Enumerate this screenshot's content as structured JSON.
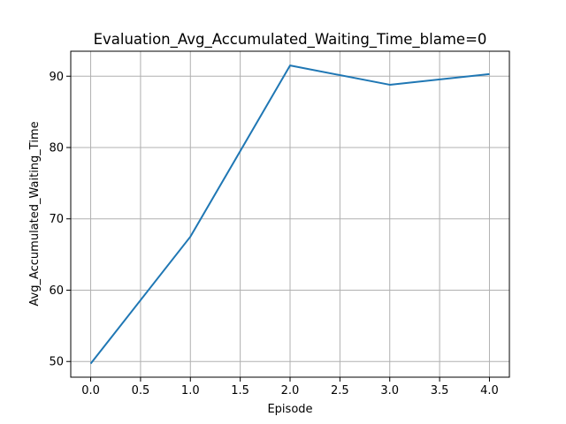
{
  "chart_data": {
    "type": "line",
    "title": "Evaluation_Avg_Accumulated_Waiting_Time_blame=0",
    "xlabel": "Episode",
    "ylabel": "Avg_Accumulated_Waiting_Time",
    "x": [
      0,
      1,
      2,
      3,
      4
    ],
    "series": [
      {
        "values": [
          49.7,
          67.5,
          91.5,
          88.8,
          90.3
        ]
      }
    ],
    "xlim": [
      -0.2,
      4.2
    ],
    "ylim": [
      47.8,
      93.5
    ],
    "xticks": [
      "0.0",
      "0.5",
      "1.0",
      "1.5",
      "2.0",
      "2.5",
      "3.0",
      "3.5",
      "4.0"
    ],
    "yticks": [
      "50",
      "60",
      "70",
      "80",
      "90"
    ],
    "grid": true,
    "legend": "none",
    "colors": {
      "line": "#1f77b4",
      "grid": "#b0b0b0",
      "axes": "#000000"
    }
  }
}
